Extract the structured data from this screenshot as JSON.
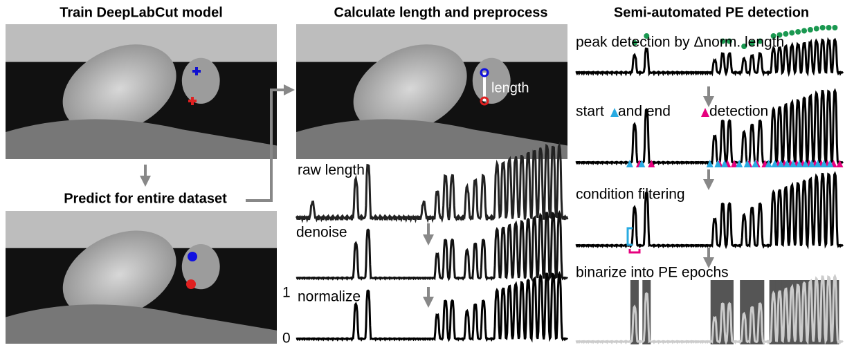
{
  "header": {
    "train": "Train DeepLabCut model",
    "calculate": "Calculate length and preprocess",
    "detect": "Semi-automated PE detection"
  },
  "left": {
    "predict": "Predict for entire dataset"
  },
  "middle": {
    "image_label": "length",
    "raw": "raw length",
    "denoise": "denoise",
    "normalize": "normalize",
    "axis_top": "1",
    "axis_bottom": "0"
  },
  "right": {
    "peak": "peak detection by Δnorm. length",
    "start": "start",
    "end": "and end",
    "detection": "detection",
    "filter": "condition filtering",
    "binarize": "binarize into PE epochs"
  }
}
